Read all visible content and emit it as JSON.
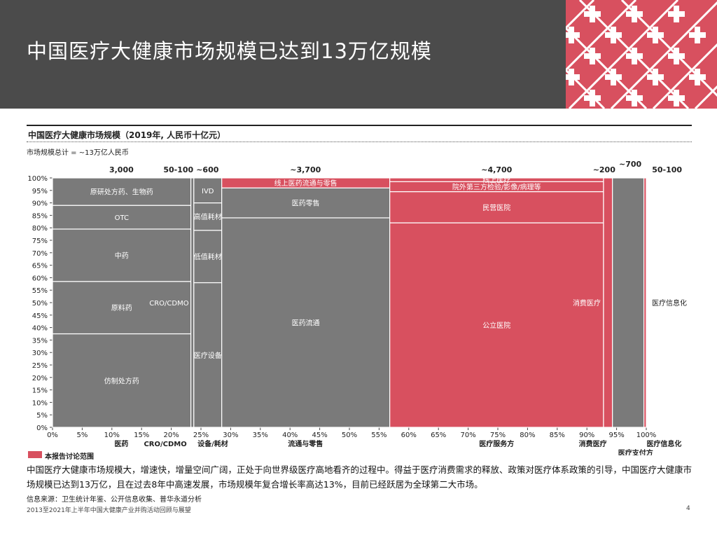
{
  "header": {
    "title": "中国医疗大健康市场规模已达到13万亿规模"
  },
  "chart_heading": "中国医疗大健康市场规模（2019年, 人民币十亿元）",
  "total_label": "市场规模总计 = ~13万亿人民币",
  "legend": {
    "label": "本报告讨论范围",
    "color": "#d8505f"
  },
  "summary": "中国医疗大健康市场规模大，增速快，增量空间广阔，正处于向世界级医疗高地看齐的过程中。得益于医疗消费需求的释放、政策对医疗体系政策的引导，中国医疗大健康市场规模已达到13万亿，且在过去8年中高速发展，市场规模年复合增长率高达13%，目前已经跃居为全球第二大市场。",
  "source": "信息来源：卫生统计年鉴、公开信息收集、普华永道分析",
  "footer": {
    "title": "2013至2021年上半年中国大健康产业并购活动回顾与展望",
    "page": "4"
  },
  "colors": {
    "gray": "#7a7a7a",
    "pink": "#d8505f",
    "header": "#4b4b4b"
  },
  "chart_data": {
    "type": "marimekko",
    "title": "中国医疗大健康市场规模（2019年, 人民币十亿元）",
    "unit": "人民币十亿元",
    "x_ticks": [
      "0%",
      "5%",
      "10%",
      "15%",
      "20%",
      "25%",
      "30%",
      "35%",
      "40%",
      "45%",
      "50%",
      "55%",
      "60%",
      "65%",
      "70%",
      "75%",
      "80%",
      "85%",
      "90%",
      "95%",
      "100%"
    ],
    "y_ticks": [
      "0%",
      "5%",
      "10%",
      "15%",
      "20%",
      "25%",
      "30%",
      "35%",
      "40%",
      "45%",
      "50%",
      "55%",
      "60%",
      "65%",
      "70%",
      "75%",
      "80%",
      "85%",
      "90%",
      "95%",
      "100%"
    ],
    "columns": [
      {
        "name": "医药",
        "total": "3,000",
        "x0": 0,
        "x1": 23.3,
        "color": "gray",
        "segments": [
          {
            "label": "仿制处方药",
            "y0": 0,
            "y1": 37.5
          },
          {
            "label": "原料药",
            "y0": 37.5,
            "y1": 58.5
          },
          {
            "label": "中药",
            "y0": 58.5,
            "y1": 79.5
          },
          {
            "label": "OTC",
            "y0": 79.5,
            "y1": 89
          },
          {
            "label": "原研处方药、生物药",
            "y0": 89,
            "y1": 100
          }
        ]
      },
      {
        "name": "CRO/CDMO",
        "total": "50-100",
        "x0": 23.3,
        "x1": 23.8,
        "color": "gray",
        "segments": [
          {
            "label": "CRO/CDMO",
            "y0": 0,
            "y1": 100
          }
        ]
      },
      {
        "name": "设备/耗材",
        "total": "~600",
        "x0": 23.8,
        "x1": 28.5,
        "color": "gray",
        "segments": [
          {
            "label": "医疗设备",
            "y0": 0,
            "y1": 58
          },
          {
            "label": "低值耗材",
            "y0": 58,
            "y1": 79
          },
          {
            "label": "高值耗材",
            "y0": 79,
            "y1": 90
          },
          {
            "label": "IVD",
            "y0": 90,
            "y1": 100
          }
        ]
      },
      {
        "name": "流通与零售",
        "total": "~3,700",
        "x0": 28.5,
        "x1": 56.8,
        "segments": [
          {
            "label": "医药流通",
            "y0": 0,
            "y1": 84,
            "color": "gray"
          },
          {
            "label": "医药零售",
            "y0": 84,
            "y1": 96,
            "color": "gray"
          },
          {
            "label": "线上医药流通与零售",
            "y0": 96,
            "y1": 100,
            "color": "pink"
          }
        ]
      },
      {
        "name": "医疗服务方",
        "total": "~4,700",
        "x0": 56.8,
        "x1": 92.8,
        "color": "pink",
        "segments": [
          {
            "label": "公立医院",
            "y0": 0,
            "y1": 82
          },
          {
            "label": "民营医院",
            "y0": 82,
            "y1": 94.5
          },
          {
            "label": "院外第三方检验/影像/病理等",
            "y0": 94.5,
            "y1": 98.5
          },
          {
            "label": "线上医疗",
            "y0": 98.5,
            "y1": 100
          }
        ]
      },
      {
        "name": "消费医疗",
        "total": "~200",
        "x0": 92.8,
        "x1": 94.3,
        "color": "pink",
        "segments": [
          {
            "label": "消费医疗",
            "y0": 0,
            "y1": 100
          }
        ]
      },
      {
        "name": "医疗支付方",
        "total": "~700",
        "x0": 94.3,
        "x1": 99.6,
        "color": "gray",
        "segments": [
          {
            "label": "",
            "y0": 0,
            "y1": 100
          }
        ]
      },
      {
        "name": "医疗信息化",
        "total": "50-100",
        "x0": 99.6,
        "x1": 100,
        "color": "pink",
        "segments": [
          {
            "label": "医疗信息化",
            "y0": 0,
            "y1": 100
          }
        ]
      }
    ]
  }
}
